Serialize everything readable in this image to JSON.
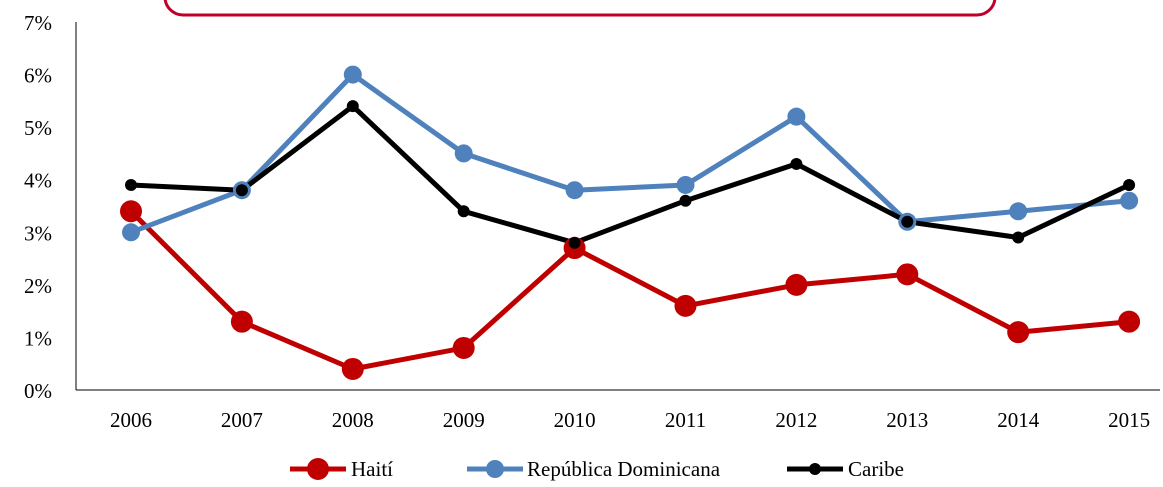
{
  "chart_data": {
    "type": "line",
    "categories": [
      "2006",
      "2007",
      "2008",
      "2009",
      "2010",
      "2011",
      "2012",
      "2013",
      "2014",
      "2015"
    ],
    "series": [
      {
        "name": "Haití",
        "color": "#C00000",
        "values": [
          3.4,
          1.3,
          0.4,
          0.8,
          2.7,
          1.6,
          2.0,
          2.2,
          1.1,
          1.3
        ]
      },
      {
        "name": "República Dominicana",
        "color": "#4F81BD",
        "values": [
          3.0,
          3.8,
          6.0,
          4.5,
          3.8,
          3.9,
          5.2,
          3.2,
          3.4,
          3.6
        ]
      },
      {
        "name": "Caribe",
        "color": "#000000",
        "values": [
          3.9,
          3.8,
          5.4,
          3.4,
          2.8,
          3.6,
          4.3,
          3.2,
          2.9,
          3.9
        ]
      }
    ],
    "yticks": [
      "0%",
      "1%",
      "2%",
      "3%",
      "4%",
      "5%",
      "6%",
      "7%"
    ],
    "ylim": [
      0,
      7
    ],
    "yunit": "%",
    "grid": false,
    "legend_position": "bottom",
    "banner_border_color": "#C0002A"
  }
}
